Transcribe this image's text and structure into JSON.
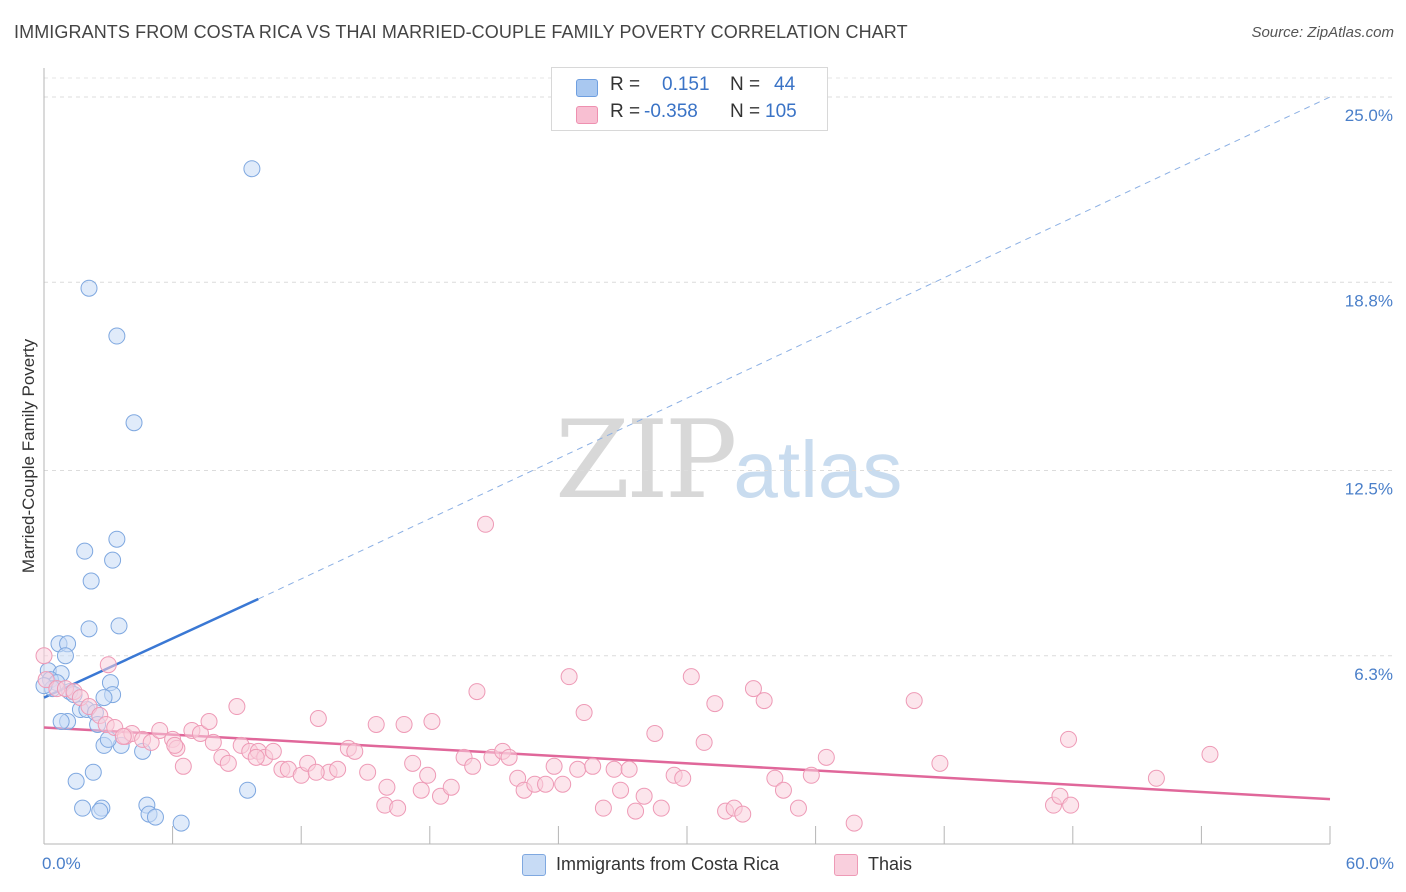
{
  "header": {
    "title": "IMMIGRANTS FROM COSTA RICA VS THAI MARRIED-COUPLE FAMILY POVERTY CORRELATION CHART",
    "source": "Source: ZipAtlas.com"
  },
  "watermark": {
    "zip": "ZIP",
    "atlas": "atlas"
  },
  "stats": [
    {
      "r_label": "R =",
      "r_value": "0.151",
      "n_label": "N =",
      "n_value": "44",
      "color": "#a9c8f0",
      "border": "#6f9fe0"
    },
    {
      "r_label": "R =",
      "r_value": "-0.358",
      "n_label": "N =",
      "n_value": "105",
      "color": "#f8bfd2",
      "border": "#ee90b0"
    }
  ],
  "legend": [
    {
      "label": "Immigrants from Costa Rica",
      "color": "#c7dbf5",
      "border": "#7fa8e0"
    },
    {
      "label": "Thais",
      "color": "#f9cfdd",
      "border": "#ee9ab6"
    }
  ],
  "chart_data": {
    "type": "scatter",
    "title": "IMMIGRANTS FROM COSTA RICA VS THAI MARRIED-COUPLE FAMILY POVERTY CORRELATION CHART",
    "xlabel": "",
    "ylabel": "Married-Couple Family Poverty",
    "xlim": [
      0,
      60
    ],
    "ylim": [
      0,
      25
    ],
    "x_tick_labels": [
      "0.0%",
      "60.0%"
    ],
    "y_ticks": [
      6.3,
      12.5,
      18.8,
      25.0
    ],
    "y_tick_labels": [
      "6.3%",
      "12.5%",
      "18.8%",
      "25.0%"
    ],
    "grid": true,
    "series": [
      {
        "name": "Immigrants from Costa Rica",
        "color": "#7fa8e0",
        "fill": "#c7dbf5",
        "trend": {
          "x0": 0,
          "y0": 4.9,
          "x1": 10,
          "y1": 8.2,
          "extend_to_x": 60,
          "extended_y": 25.0,
          "line_color": "#3a78d4"
        },
        "points": [
          [
            9.7,
            22.6
          ],
          [
            2.1,
            18.6
          ],
          [
            3.4,
            17.0
          ],
          [
            4.2,
            14.1
          ],
          [
            3.4,
            10.2
          ],
          [
            1.9,
            9.8
          ],
          [
            3.2,
            9.5
          ],
          [
            2.2,
            8.8
          ],
          [
            3.5,
            7.3
          ],
          [
            2.1,
            7.2
          ],
          [
            0.7,
            6.7
          ],
          [
            1.1,
            6.7
          ],
          [
            1.0,
            6.3
          ],
          [
            0.2,
            5.8
          ],
          [
            0.8,
            5.7
          ],
          [
            0.3,
            5.5
          ],
          [
            0.6,
            5.4
          ],
          [
            0.4,
            5.2
          ],
          [
            0.0,
            5.3
          ],
          [
            1.2,
            5.1
          ],
          [
            1.4,
            5.0
          ],
          [
            3.1,
            5.4
          ],
          [
            3.2,
            5.0
          ],
          [
            2.8,
            4.9
          ],
          [
            1.7,
            4.5
          ],
          [
            2.0,
            4.5
          ],
          [
            2.4,
            4.4
          ],
          [
            1.1,
            4.1
          ],
          [
            0.8,
            4.1
          ],
          [
            2.5,
            4.0
          ],
          [
            3.6,
            3.3
          ],
          [
            2.8,
            3.3
          ],
          [
            4.6,
            3.1
          ],
          [
            2.3,
            2.4
          ],
          [
            1.5,
            2.1
          ],
          [
            9.5,
            1.8
          ],
          [
            4.8,
            1.3
          ],
          [
            1.8,
            1.2
          ],
          [
            2.7,
            1.2
          ],
          [
            2.6,
            1.1
          ],
          [
            4.9,
            1.0
          ],
          [
            5.2,
            0.9
          ],
          [
            6.4,
            0.7
          ],
          [
            3.0,
            3.5
          ]
        ]
      },
      {
        "name": "Thais",
        "color": "#ee9ab6",
        "fill": "#f9cfdd",
        "trend": {
          "x0": 0,
          "y0": 3.9,
          "x1": 60,
          "y1": 1.5,
          "line_color": "#e0679a"
        },
        "points": [
          [
            0.0,
            6.3
          ],
          [
            3.0,
            6.0
          ],
          [
            0.1,
            5.5
          ],
          [
            0.6,
            5.2
          ],
          [
            1.0,
            5.2
          ],
          [
            1.4,
            5.1
          ],
          [
            1.7,
            4.9
          ],
          [
            2.1,
            4.6
          ],
          [
            2.6,
            4.3
          ],
          [
            2.9,
            4.0
          ],
          [
            3.3,
            3.9
          ],
          [
            3.8,
            3.6
          ],
          [
            4.1,
            3.7
          ],
          [
            4.6,
            3.5
          ],
          [
            5.0,
            3.4
          ],
          [
            5.4,
            3.8
          ],
          [
            6.0,
            3.5
          ],
          [
            6.2,
            3.2
          ],
          [
            6.5,
            2.6
          ],
          [
            6.9,
            3.8
          ],
          [
            7.3,
            3.7
          ],
          [
            7.7,
            4.1
          ],
          [
            7.9,
            3.4
          ],
          [
            8.3,
            2.9
          ],
          [
            8.6,
            2.7
          ],
          [
            9.0,
            4.6
          ],
          [
            9.2,
            3.3
          ],
          [
            9.6,
            3.1
          ],
          [
            10.0,
            3.1
          ],
          [
            10.3,
            2.9
          ],
          [
            10.7,
            3.1
          ],
          [
            11.1,
            2.5
          ],
          [
            11.4,
            2.5
          ],
          [
            12.0,
            2.3
          ],
          [
            12.3,
            2.7
          ],
          [
            12.8,
            4.2
          ],
          [
            13.3,
            2.4
          ],
          [
            13.7,
            2.5
          ],
          [
            14.2,
            3.2
          ],
          [
            14.5,
            3.1
          ],
          [
            15.1,
            2.4
          ],
          [
            15.5,
            4.0
          ],
          [
            15.9,
            1.3
          ],
          [
            16.0,
            1.9
          ],
          [
            16.5,
            1.2
          ],
          [
            16.8,
            4.0
          ],
          [
            17.2,
            2.7
          ],
          [
            17.6,
            1.8
          ],
          [
            17.9,
            2.3
          ],
          [
            18.1,
            4.1
          ],
          [
            18.5,
            1.6
          ],
          [
            19.0,
            1.9
          ],
          [
            19.6,
            2.9
          ],
          [
            20.0,
            2.6
          ],
          [
            20.6,
            10.7
          ],
          [
            20.2,
            5.1
          ],
          [
            20.9,
            2.9
          ],
          [
            21.4,
            3.1
          ],
          [
            21.7,
            2.9
          ],
          [
            22.1,
            2.2
          ],
          [
            22.4,
            1.8
          ],
          [
            22.9,
            2.0
          ],
          [
            23.4,
            2.0
          ],
          [
            23.8,
            2.6
          ],
          [
            24.2,
            2.0
          ],
          [
            24.5,
            5.6
          ],
          [
            24.9,
            2.5
          ],
          [
            25.2,
            4.4
          ],
          [
            25.6,
            2.6
          ],
          [
            26.1,
            1.2
          ],
          [
            26.6,
            2.5
          ],
          [
            26.9,
            1.8
          ],
          [
            27.3,
            2.5
          ],
          [
            27.6,
            1.1
          ],
          [
            28.0,
            1.6
          ],
          [
            28.5,
            3.7
          ],
          [
            28.8,
            1.2
          ],
          [
            29.4,
            2.3
          ],
          [
            29.8,
            2.2
          ],
          [
            30.2,
            5.6
          ],
          [
            30.8,
            3.4
          ],
          [
            31.3,
            4.7
          ],
          [
            31.8,
            1.1
          ],
          [
            32.2,
            1.2
          ],
          [
            32.6,
            1.0
          ],
          [
            33.1,
            5.2
          ],
          [
            33.6,
            4.8
          ],
          [
            34.1,
            2.2
          ],
          [
            34.5,
            1.8
          ],
          [
            35.2,
            1.2
          ],
          [
            35.8,
            2.3
          ],
          [
            36.5,
            2.9
          ],
          [
            37.8,
            0.7
          ],
          [
            40.6,
            4.8
          ],
          [
            41.8,
            2.7
          ],
          [
            47.8,
            3.5
          ],
          [
            47.1,
            1.3
          ],
          [
            47.4,
            1.6
          ],
          [
            47.9,
            1.3
          ],
          [
            51.9,
            2.2
          ],
          [
            54.4,
            3.0
          ],
          [
            12.7,
            2.4
          ],
          [
            6.1,
            3.3
          ],
          [
            9.9,
            2.9
          ],
          [
            3.7,
            3.6
          ]
        ]
      }
    ]
  }
}
